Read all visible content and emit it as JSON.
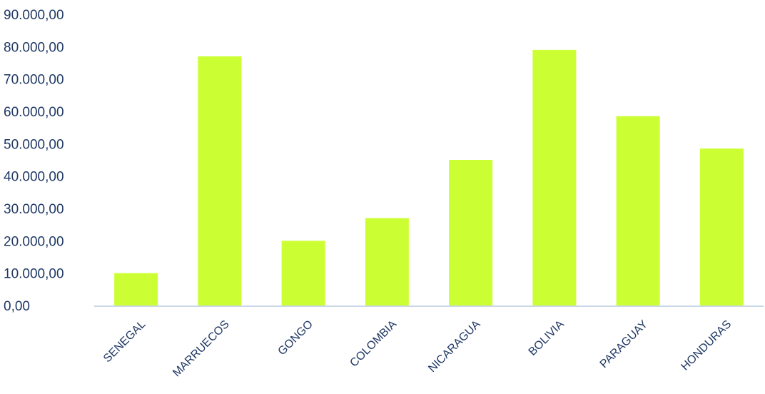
{
  "chart_data": {
    "type": "bar",
    "title": "",
    "xlabel": "",
    "ylabel": "",
    "categories": [
      "SENEGAL",
      "MARRUECOS",
      "GONGO",
      "COLOMBIA",
      "NICARAGUA",
      "BOLIVIA",
      "PARAGUAY",
      "HONDURAS"
    ],
    "values": [
      10000,
      77000,
      20000,
      27000,
      45000,
      79000,
      58500,
      48500
    ],
    "ylim": [
      0,
      90000
    ],
    "yticks": [
      0,
      10000,
      20000,
      30000,
      40000,
      50000,
      60000,
      70000,
      80000,
      90000
    ],
    "ytick_labels": [
      "0,00",
      "10.000,00",
      "20.000,00",
      "30.000,00",
      "40.000,00",
      "50.000,00",
      "60.000,00",
      "70.000,00",
      "80.000,00",
      "90.000,00"
    ],
    "grid": false,
    "legend": "none",
    "bar_color": "#ccff33",
    "axis_color": "#c9d7e8",
    "label_color": "#1f3864"
  }
}
